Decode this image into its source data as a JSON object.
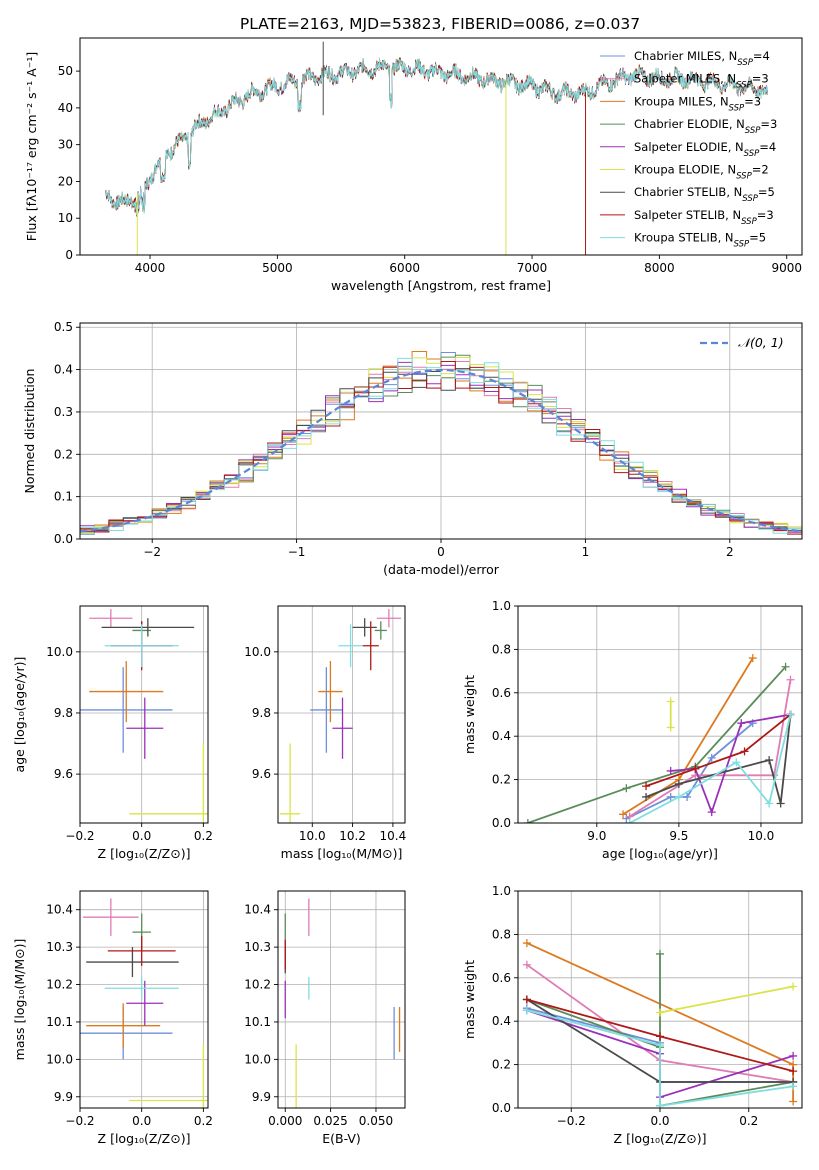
{
  "figure": {
    "title": "PLATE=2163, MJD=53823, FIBERID=0086, z=0.037"
  },
  "colors": {
    "chabrier_miles": "#6f8fd9",
    "salpeter_miles": "#e07bb5",
    "kroupa_miles": "#dd7a1f",
    "chabrier_elodie": "#5a8c5a",
    "salpeter_elodie": "#9b30b8",
    "kroupa_elodie": "#d9e34a",
    "chabrier_stelib": "#4a4a4a",
    "salpeter_stelib": "#b01818",
    "kroupa_stelib": "#80dde0",
    "normal": "#5b86d6",
    "grid": "#b0b0b0"
  },
  "chart_data": [
    {
      "id": "spectrum",
      "type": "line",
      "xlabel": "wavelength [Angstrom, rest frame]",
      "ylabel": "Flux [fλ10⁻¹⁷ erg cm⁻² s⁻¹ A⁻¹]",
      "xlim": [
        3450,
        9120
      ],
      "ylim": [
        0,
        59
      ],
      "xticks": [
        4000,
        5000,
        6000,
        7000,
        8000,
        9000
      ],
      "yticks": [
        0,
        10,
        20,
        30,
        40,
        50
      ],
      "legend_position": "top-right",
      "continuum": {
        "x": [
          3650,
          3800,
          3950,
          4100,
          4250,
          4400,
          4600,
          4800,
          5000,
          5200,
          5400,
          5600,
          5800,
          6000,
          6200,
          6400,
          6600,
          6800,
          7000,
          7200,
          7400,
          7600,
          7800,
          8000,
          8200,
          8400,
          8600,
          8800,
          8850
        ],
        "y": [
          16,
          14,
          18,
          27,
          31,
          36,
          40,
          44,
          46,
          48,
          49,
          50,
          51,
          51,
          50,
          49,
          48,
          47,
          46,
          44,
          44,
          47,
          49,
          48,
          48,
          47,
          46,
          45,
          44
        ]
      },
      "dropouts": [
        {
          "series": "kroupa_elodie",
          "x": 3900
        },
        {
          "series": "kroupa_elodie",
          "x": 6795
        },
        {
          "series": "salpeter_stelib",
          "x": 7420
        }
      ],
      "series": [
        {
          "name": "Chabrier MILES, N",
          "sub": "SSP",
          "tail": "=4",
          "color_key": "chabrier_miles"
        },
        {
          "name": "Salpeter MILES, N",
          "sub": "SSP",
          "tail": "=3",
          "color_key": "salpeter_miles"
        },
        {
          "name": "Kroupa MILES, N",
          "sub": "SSP",
          "tail": "=3",
          "color_key": "kroupa_miles"
        },
        {
          "name": "Chabrier ELODIE, N",
          "sub": "SSP",
          "tail": "=3",
          "color_key": "chabrier_elodie"
        },
        {
          "name": "Salpeter ELODIE, N",
          "sub": "SSP",
          "tail": "=4",
          "color_key": "salpeter_elodie"
        },
        {
          "name": "Kroupa ELODIE, N",
          "sub": "SSP",
          "tail": "=2",
          "color_key": "kroupa_elodie"
        },
        {
          "name": "Chabrier STELIB, N",
          "sub": "SSP",
          "tail": "=5",
          "color_key": "chabrier_stelib"
        },
        {
          "name": "Salpeter STELIB, N",
          "sub": "SSP",
          "tail": "=3",
          "color_key": "salpeter_stelib"
        },
        {
          "name": "Kroupa STELIB, N",
          "sub": "SSP",
          "tail": "=5",
          "color_key": "kroupa_stelib"
        }
      ]
    },
    {
      "id": "residuals",
      "type": "step-histogram",
      "xlabel": "(data-model)/error",
      "ylabel": "Normed distribution",
      "xlim": [
        -2.5,
        2.5
      ],
      "ylim": [
        0,
        0.51
      ],
      "xticks": [
        -2,
        -1,
        0,
        1,
        2
      ],
      "xticklabels": [
        "−2",
        "−1",
        "0",
        "1",
        "2"
      ],
      "yticks": [
        0,
        0.1,
        0.2,
        0.3,
        0.4,
        0.5
      ],
      "yticklabels": [
        "0.0",
        "0.1",
        "0.2",
        "0.3",
        "0.4",
        "0.5"
      ],
      "bin_width": 0.1,
      "legend": "𝒩(0, 1)",
      "legend_position": "top-right"
    },
    {
      "id": "age_vs_Z",
      "type": "errorbar",
      "xlabel": "Z [log₁₀(Z/Z⊙)]",
      "ylabel": "age  [log₁₀(age/yr)]",
      "xlim": [
        -0.2,
        0.215
      ],
      "ylim": [
        9.44,
        10.15
      ],
      "xticks": [
        -0.2,
        0,
        0.2
      ],
      "xticklabels": [
        "−0.2",
        "0.0",
        "0.2"
      ],
      "yticks": [
        9.6,
        9.8,
        10.0
      ],
      "yticklabels": [
        "9.6",
        "9.8",
        "10.0"
      ],
      "points": [
        {
          "k": "chabrier_miles",
          "x": -0.06,
          "xe": 0.16,
          "y": 9.81,
          "ye": 0.14
        },
        {
          "k": "salpeter_miles",
          "x": -0.1,
          "xe": 0.07,
          "y": 10.11,
          "ye": 0.03
        },
        {
          "k": "kroupa_miles",
          "x": -0.05,
          "xe": 0.12,
          "y": 9.87,
          "ye": 0.1
        },
        {
          "k": "chabrier_elodie",
          "x": 0.0,
          "xe": 0.03,
          "y": 10.07,
          "ye": 0.03
        },
        {
          "k": "salpeter_elodie",
          "x": 0.01,
          "xe": 0.06,
          "y": 9.75,
          "ye": 0.1
        },
        {
          "k": "kroupa_elodie",
          "x": 0.2,
          "xe": 0.24,
          "y": 9.47,
          "ye": 0.23
        },
        {
          "k": "chabrier_stelib",
          "x": 0.02,
          "xe": 0.15,
          "y": 10.08,
          "ye": 0.03
        },
        {
          "k": "salpeter_stelib",
          "x": 0.0,
          "xe": 0.1,
          "y": 10.02,
          "ye": 0.08
        },
        {
          "k": "kroupa_stelib",
          "x": 0.0,
          "xe": 0.12,
          "y": 10.02,
          "ye": 0.07
        }
      ]
    },
    {
      "id": "age_vs_mass",
      "type": "errorbar",
      "xlabel": "mass [log₁₀(M/M⊙)]",
      "ylabel": "",
      "xlim": [
        9.83,
        10.46
      ],
      "ylim": [
        9.44,
        10.15
      ],
      "xticks": [
        10.0,
        10.2,
        10.4
      ],
      "xticklabels": [
        "10.0",
        "10.2",
        "10.4"
      ],
      "yticks": [
        9.6,
        9.8,
        10.0
      ],
      "yticklabels": [
        "9.6",
        "9.8",
        "10.0"
      ],
      "points": [
        {
          "k": "chabrier_miles",
          "x": 10.07,
          "xe": 0.08,
          "y": 9.81,
          "ye": 0.14
        },
        {
          "k": "salpeter_miles",
          "x": 10.38,
          "xe": 0.06,
          "y": 10.11,
          "ye": 0.03
        },
        {
          "k": "kroupa_miles",
          "x": 10.09,
          "xe": 0.06,
          "y": 9.87,
          "ye": 0.1
        },
        {
          "k": "chabrier_elodie",
          "x": 10.34,
          "xe": 0.03,
          "y": 10.07,
          "ye": 0.03
        },
        {
          "k": "salpeter_elodie",
          "x": 10.15,
          "xe": 0.05,
          "y": 9.75,
          "ye": 0.1
        },
        {
          "k": "kroupa_elodie",
          "x": 9.89,
          "xe": 0.05,
          "y": 9.47,
          "ye": 0.23
        },
        {
          "k": "chabrier_stelib",
          "x": 10.26,
          "xe": 0.06,
          "y": 10.08,
          "ye": 0.03
        },
        {
          "k": "salpeter_stelib",
          "x": 10.29,
          "xe": 0.04,
          "y": 10.02,
          "ye": 0.08
        },
        {
          "k": "kroupa_stelib",
          "x": 10.19,
          "xe": 0.06,
          "y": 10.02,
          "ye": 0.07
        }
      ]
    },
    {
      "id": "weight_vs_age",
      "type": "line",
      "xlabel": "age  [log₁₀(age/yr)]",
      "ylabel": "mass weight",
      "xlim": [
        8.52,
        10.25
      ],
      "ylim": [
        0,
        1
      ],
      "xticks": [
        9.0,
        9.5,
        10.0
      ],
      "xticklabels": [
        "9.0",
        "9.5",
        "10.0"
      ],
      "yticks": [
        0,
        0.2,
        0.4,
        0.6,
        0.8,
        1.0
      ],
      "yticklabels": [
        "0.0",
        "0.2",
        "0.4",
        "0.6",
        "0.8",
        "1.0"
      ],
      "series": [
        {
          "k": "chabrier_miles",
          "x": [
            9.18,
            9.45,
            9.55,
            9.7,
            9.95
          ],
          "y": [
            0.02,
            0.12,
            0.12,
            0.3,
            0.46
          ]
        },
        {
          "k": "salpeter_miles",
          "x": [
            9.2,
            9.6,
            10.08,
            10.18
          ],
          "y": [
            0.03,
            0.22,
            0.22,
            0.66
          ]
        },
        {
          "k": "kroupa_miles",
          "x": [
            9.16,
            9.5,
            9.95
          ],
          "y": [
            0.04,
            0.2,
            0.76
          ]
        },
        {
          "k": "chabrier_elodie",
          "x": [
            8.58,
            9.18,
            9.6,
            10.15
          ],
          "y": [
            0.0,
            0.16,
            0.26,
            0.72
          ]
        },
        {
          "k": "salpeter_elodie",
          "x": [
            9.45,
            9.6,
            9.7,
            9.88,
            10.18
          ],
          "y": [
            0.24,
            0.25,
            0.05,
            0.46,
            0.5
          ]
        },
        {
          "k": "kroupa_elodie",
          "x": [
            9.45,
            9.45
          ],
          "y": [
            0.44,
            0.56
          ]
        },
        {
          "k": "chabrier_stelib",
          "x": [
            9.3,
            9.5,
            10.05,
            10.12,
            10.18
          ],
          "y": [
            0.12,
            0.18,
            0.29,
            0.09,
            0.5
          ]
        },
        {
          "k": "salpeter_stelib",
          "x": [
            9.3,
            9.6,
            9.9,
            10.18
          ],
          "y": [
            0.17,
            0.25,
            0.33,
            0.5
          ]
        },
        {
          "k": "kroupa_stelib",
          "x": [
            9.2,
            9.5,
            9.85,
            10.05,
            10.18
          ],
          "y": [
            0.0,
            0.12,
            0.28,
            0.09,
            0.5
          ]
        }
      ]
    },
    {
      "id": "mass_vs_Z",
      "type": "errorbar",
      "xlabel": "Z [log₁₀(Z/Z⊙)]",
      "ylabel": "mass [log₁₀(M/M⊙)]",
      "xlim": [
        -0.2,
        0.215
      ],
      "ylim": [
        9.87,
        10.45
      ],
      "xticks": [
        -0.2,
        0,
        0.2
      ],
      "xticklabels": [
        "−0.2",
        "0.0",
        "0.2"
      ],
      "yticks": [
        9.9,
        10.0,
        10.1,
        10.2,
        10.3,
        10.4
      ],
      "yticklabels": [
        "9.9",
        "10.0",
        "10.1",
        "10.2",
        "10.3",
        "10.4"
      ],
      "points": [
        {
          "k": "chabrier_miles",
          "x": -0.06,
          "xe": 0.16,
          "y": 10.07,
          "ye": 0.07
        },
        {
          "k": "salpeter_miles",
          "x": -0.1,
          "xe": 0.09,
          "y": 10.38,
          "ye": 0.05
        },
        {
          "k": "kroupa_miles",
          "x": -0.06,
          "xe": 0.12,
          "y": 10.09,
          "ye": 0.06
        },
        {
          "k": "chabrier_elodie",
          "x": 0.0,
          "xe": 0.03,
          "y": 10.34,
          "ye": 0.05
        },
        {
          "k": "salpeter_elodie",
          "x": 0.01,
          "xe": 0.06,
          "y": 10.15,
          "ye": 0.06
        },
        {
          "k": "kroupa_elodie",
          "x": 0.2,
          "xe": 0.24,
          "y": 9.89,
          "ye": 0.15
        },
        {
          "k": "chabrier_stelib",
          "x": -0.03,
          "xe": 0.15,
          "y": 10.26,
          "ye": 0.04
        },
        {
          "k": "salpeter_stelib",
          "x": 0.0,
          "xe": 0.11,
          "y": 10.29,
          "ye": 0.04
        },
        {
          "k": "kroupa_stelib",
          "x": 0.0,
          "xe": 0.12,
          "y": 10.19,
          "ye": 0.03
        }
      ]
    },
    {
      "id": "mass_vs_ebv",
      "type": "errorbar",
      "xlabel": "E(B-V)",
      "ylabel": "",
      "xlim": [
        -0.004,
        0.066
      ],
      "ylim": [
        9.87,
        10.45
      ],
      "xticks": [
        0.0,
        0.025,
        0.05
      ],
      "xticklabels": [
        "0.000",
        "0.025",
        "0.050"
      ],
      "yticks": [
        9.9,
        10.0,
        10.1,
        10.2,
        10.3,
        10.4
      ],
      "yticklabels": [
        "9.9",
        "10.0",
        "10.1",
        "10.2",
        "10.3",
        "10.4"
      ],
      "points": [
        {
          "k": "chabrier_miles",
          "x": 0.06,
          "xe": 0,
          "y": 10.07,
          "ye": 0.07
        },
        {
          "k": "salpeter_miles",
          "x": 0.013,
          "xe": 0,
          "y": 10.38,
          "ye": 0.05
        },
        {
          "k": "kroupa_miles",
          "x": 0.063,
          "xe": 0,
          "y": 10.08,
          "ye": 0.06
        },
        {
          "k": "chabrier_elodie",
          "x": 0.0,
          "xe": 0,
          "y": 10.34,
          "ye": 0.05
        },
        {
          "k": "salpeter_elodie",
          "x": 0.0,
          "xe": 0,
          "y": 10.16,
          "ye": 0.05
        },
        {
          "k": "kroupa_elodie",
          "x": 0.006,
          "xe": 0,
          "y": 9.92,
          "ye": 0.12
        },
        {
          "k": "chabrier_stelib",
          "x": 0.0,
          "xe": 0,
          "y": 10.27,
          "ye": 0.04
        },
        {
          "k": "salpeter_stelib",
          "x": 0.0,
          "xe": 0,
          "y": 10.28,
          "ye": 0.04
        },
        {
          "k": "kroupa_stelib",
          "x": 0.013,
          "xe": 0,
          "y": 10.19,
          "ye": 0.03
        }
      ]
    },
    {
      "id": "weight_vs_Z",
      "type": "line",
      "xlabel": "Z [log₁₀(Z/Z⊙)]",
      "ylabel": "mass weight",
      "xlim": [
        -0.32,
        0.32
      ],
      "ylim": [
        0,
        1
      ],
      "xticks": [
        -0.2,
        0,
        0.2
      ],
      "xticklabels": [
        "−0.2",
        "0.0",
        "0.2"
      ],
      "yticks": [
        0,
        0.2,
        0.4,
        0.6,
        0.8,
        1.0
      ],
      "yticklabels": [
        "0.0",
        "0.2",
        "0.4",
        "0.6",
        "0.8",
        "1.0"
      ],
      "series": [
        {
          "k": "chabrier_miles",
          "x": [
            -0.3,
            0.0,
            0.0,
            0.3
          ],
          "y": [
            0.46,
            0.3,
            0.12,
            0.12
          ]
        },
        {
          "k": "salpeter_miles",
          "x": [
            -0.3,
            0.0,
            0.3
          ],
          "y": [
            0.66,
            0.22,
            0.12
          ]
        },
        {
          "k": "kroupa_miles",
          "x": [
            -0.3,
            0.3,
            0.3
          ],
          "y": [
            0.76,
            0.2,
            0.03
          ]
        },
        {
          "k": "chabrier_elodie",
          "x": [
            -0.3,
            0.0,
            0.0,
            0.0,
            0.3
          ],
          "y": [
            0.5,
            0.28,
            0.71,
            0.01,
            0.12
          ]
        },
        {
          "k": "salpeter_elodie",
          "x": [
            -0.3,
            0.0,
            0.0,
            0.3
          ],
          "y": [
            0.45,
            0.25,
            0.05,
            0.24
          ]
        },
        {
          "k": "kroupa_elodie",
          "x": [
            0.0,
            0.3
          ],
          "y": [
            0.44,
            0.56
          ]
        },
        {
          "k": "chabrier_stelib",
          "x": [
            -0.3,
            0.0,
            0.3
          ],
          "y": [
            0.5,
            0.12,
            0.12
          ]
        },
        {
          "k": "salpeter_stelib",
          "x": [
            -0.3,
            0.0,
            0.3
          ],
          "y": [
            0.5,
            0.33,
            0.17
          ]
        },
        {
          "k": "kroupa_stelib",
          "x": [
            -0.3,
            0.0,
            0.0,
            0.3
          ],
          "y": [
            0.45,
            0.29,
            0.01,
            0.1
          ]
        }
      ]
    }
  ]
}
